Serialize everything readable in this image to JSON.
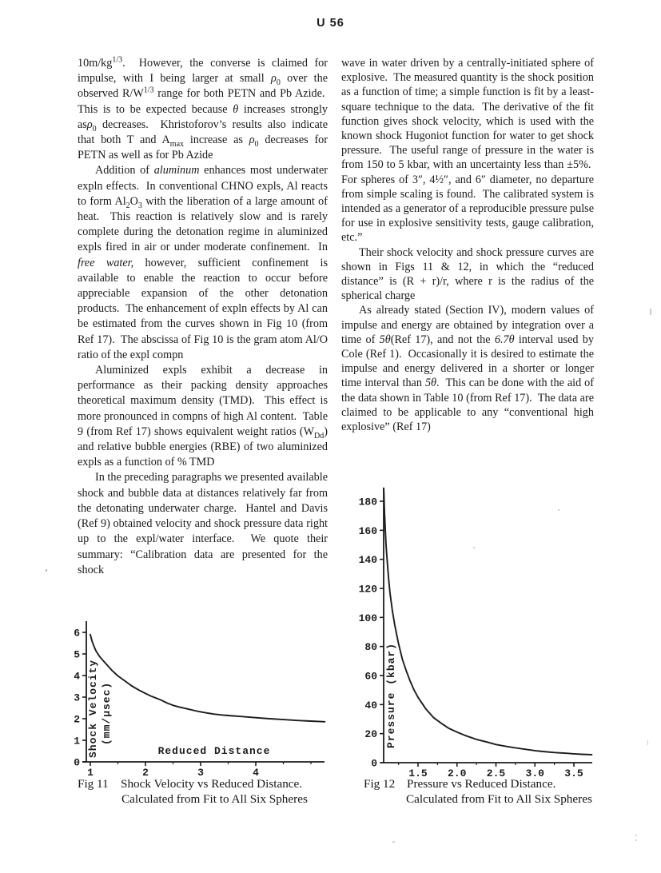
{
  "header": {
    "page_number": "U 56"
  },
  "columns": {
    "left": [
      {
        "html": "10m/kg<sup>1/3</sup>.&nbsp; However, the converse is claimed for impulse, with I being larger at small <i>ρ</i><sub>0</sub> over the observed R/W<sup>1/3</sup> range for both PETN and Pb Azide.&nbsp; This is to be expected because <i>θ</i> increases strongly as<i>ρ</i><sub>0</sub> decreases.&nbsp; Khristoforov’s results also indicate that both T and A<sub>max</sub> increase as <i>ρ</i><sub>0</sub> decreases for PETN as well as for Pb Azide"
      },
      {
        "html": "Addition of <i>aluminum</i> enhances most underwater expln effects.&nbsp; In conventional CHNO expls, Al reacts to form Al<sub>2</sub>O<sub>3</sub> with the liberation of a large amount of heat.&nbsp; This reaction is relatively slow and is rarely complete during the detonation regime in aluminized expls fired in air or under moderate confinement.&nbsp; In <i>free water,</i> however, sufficient confinement is available to enable the reaction to occur before appreciable expansion of the other detonation products.&nbsp; The enhancement of expln effects by Al can be estimated from the curves shown in Fig 10 (from Ref 17).&nbsp; The abscissa of Fig 10 is the gram atom Al/O ratio of the expl compn"
      },
      {
        "html": "Aluminized expls exhibit a decrease in performance as their packing density approaches theoretical maximum density (TMD).&nbsp; This effect is more pronounced in compns of high Al content.&nbsp; Table 9 (from Ref 17) shows equivalent weight ratios (W<sub>Dd</sub>) and relative bubble energies (RBE) of two aluminized expls as a function of % TMD"
      },
      {
        "html": "In the preceding paragraphs we presented available shock and bubble data at distances relatively far from the detonating underwater charge.&nbsp; Hantel and Davis (Ref 9) obtained velocity and shock pressure data right up to the expl/water interface.&nbsp; We quote their summary: “Calibration data are presented for the shock"
      }
    ],
    "right": [
      {
        "html": "wave in water driven by a centrally-initiated sphere of explosive.&nbsp; The measured quantity is the shock position as a function of time; a simple function is fit by a least-square technique to the data.&nbsp; The derivative of the fit function gives shock velocity, which is used with the known shock Hugoniot function for water to get shock pressure.&nbsp; The useful range of pressure in the water is from 150 to 5 kbar, with an uncertainty less than ±5%.&nbsp; For spheres of 3″, 4½″, and 6″ diameter, no departure from simple scaling is found.&nbsp; The calibrated system is intended as a generator of a reproducible pressure pulse for use in explosive sensitivity tests, gauge calibration, etc.”"
      },
      {
        "html": "Their shock velocity and shock pressure curves are shown in Figs 11 &amp; 12, in which the “reduced distance” is (R + r)/r, where r is the radius of the spherical charge"
      },
      {
        "html": "As already stated (Section IV), modern values of impulse and energy are obtained by integration over a time of <i>5θ</i>(Ref 17), and not the <i>6.7θ</i> interval used by Cole (Ref 1).&nbsp; Occasionally it is desired to estimate the impulse and energy delivered in a shorter or longer time interval than <i>5θ</i>.&nbsp; This can be done with the aid of the data shown in Table 10 (from Ref 17).&nbsp; The data are claimed to be applicable to any “conventional high explosive” (Ref 17)"
      }
    ]
  },
  "figures": [
    {
      "label": "Fig 11",
      "caption_line1": "Shock Velocity vs Reduced Distance.",
      "caption_line2": "Calculated from Fit to All Six Spheres"
    },
    {
      "label": "Fig 12",
      "caption_line1": "Pressure vs Reduced Distance.",
      "caption_line2": "Calculated from Fit to All Six Spheres"
    }
  ],
  "chart_data": [
    {
      "type": "line",
      "title": "Fig 11  Shock Velocity vs Reduced Distance. Calculated from Fit to All Six Spheres",
      "xlabel": "Reduced Distance",
      "ylabel_lines": [
        "Shock Velocity",
        "(mm/μsec)"
      ],
      "xlim": [
        1.0,
        5.3
      ],
      "ylim": [
        0,
        6.7
      ],
      "grid": false,
      "legend": null,
      "x_tick_values": [
        1,
        2,
        3,
        4
      ],
      "x_tick_labels": [
        "1",
        "2",
        "3",
        "4"
      ],
      "x_minor_ticks": [
        1.5,
        2.5,
        3.5,
        4.5,
        5.0
      ],
      "y_tick_values": [
        0,
        1,
        2,
        3,
        4,
        5,
        6
      ],
      "y_tick_labels": [
        "0",
        "1",
        "2",
        "3",
        "4",
        "5",
        "6"
      ],
      "points": [
        [
          1.0,
          5.9
        ],
        [
          1.03,
          5.6
        ],
        [
          1.06,
          5.4
        ],
        [
          1.1,
          5.15
        ],
        [
          1.15,
          4.95
        ],
        [
          1.2,
          4.78
        ],
        [
          1.3,
          4.5
        ],
        [
          1.4,
          4.22
        ],
        [
          1.5,
          3.98
        ],
        [
          1.6,
          3.8
        ],
        [
          1.75,
          3.52
        ],
        [
          1.9,
          3.3
        ],
        [
          2.0,
          3.17
        ],
        [
          2.1,
          3.05
        ],
        [
          2.25,
          2.9
        ],
        [
          2.4,
          2.72
        ],
        [
          2.5,
          2.62
        ],
        [
          2.6,
          2.55
        ],
        [
          2.75,
          2.46
        ],
        [
          2.9,
          2.37
        ],
        [
          3.0,
          2.32
        ],
        [
          3.1,
          2.27
        ],
        [
          3.25,
          2.21
        ],
        [
          3.4,
          2.17
        ],
        [
          3.5,
          2.15
        ],
        [
          3.75,
          2.1
        ],
        [
          4.0,
          2.05
        ],
        [
          4.25,
          2.0
        ],
        [
          4.5,
          1.96
        ],
        [
          4.75,
          1.92
        ],
        [
          5.0,
          1.89
        ],
        [
          5.25,
          1.86
        ]
      ]
    },
    {
      "type": "line",
      "title": "Fig 12  Pressure vs Reduced Distance. Calculated from Fit to All Six Spheres",
      "xlabel": "",
      "ylabel_lines": [
        "Pressure (kbar)"
      ],
      "xlim": [
        1.06,
        3.73
      ],
      "ylim": [
        0,
        192
      ],
      "grid": false,
      "legend": null,
      "x_tick_values": [
        1.5,
        2.0,
        2.5,
        3.0,
        3.5
      ],
      "x_tick_labels": [
        "1.5",
        "2.0",
        "2.5",
        "3.0",
        "3.5"
      ],
      "x_minor_ticks": [
        1.25,
        1.75,
        2.25,
        2.75,
        3.25
      ],
      "y_tick_values": [
        0,
        20,
        40,
        60,
        80,
        100,
        120,
        140,
        160,
        180
      ],
      "y_tick_labels": [
        "0",
        "20",
        "40",
        "60",
        "80",
        "100",
        "120",
        "140",
        "160",
        "180"
      ],
      "points": [
        [
          1.06,
          189
        ],
        [
          1.07,
          172
        ],
        [
          1.08,
          160
        ],
        [
          1.09,
          150
        ],
        [
          1.1,
          142
        ],
        [
          1.12,
          128
        ],
        [
          1.14,
          117
        ],
        [
          1.17,
          105
        ],
        [
          1.2,
          95
        ],
        [
          1.25,
          82
        ],
        [
          1.3,
          71
        ],
        [
          1.35,
          63
        ],
        [
          1.4,
          56
        ],
        [
          1.45,
          50
        ],
        [
          1.5,
          45
        ],
        [
          1.6,
          37
        ],
        [
          1.7,
          31
        ],
        [
          1.8,
          27
        ],
        [
          1.9,
          23.5
        ],
        [
          2.0,
          21
        ],
        [
          2.1,
          18.8
        ],
        [
          2.25,
          16
        ],
        [
          2.4,
          14
        ],
        [
          2.5,
          12.5
        ],
        [
          2.6,
          11.5
        ],
        [
          2.75,
          10.2
        ],
        [
          2.9,
          9
        ],
        [
          3.0,
          8.3
        ],
        [
          3.1,
          7.7
        ],
        [
          3.25,
          7
        ],
        [
          3.4,
          6.5
        ],
        [
          3.5,
          6.1
        ],
        [
          3.6,
          5.8
        ],
        [
          3.73,
          5.5
        ]
      ]
    }
  ]
}
